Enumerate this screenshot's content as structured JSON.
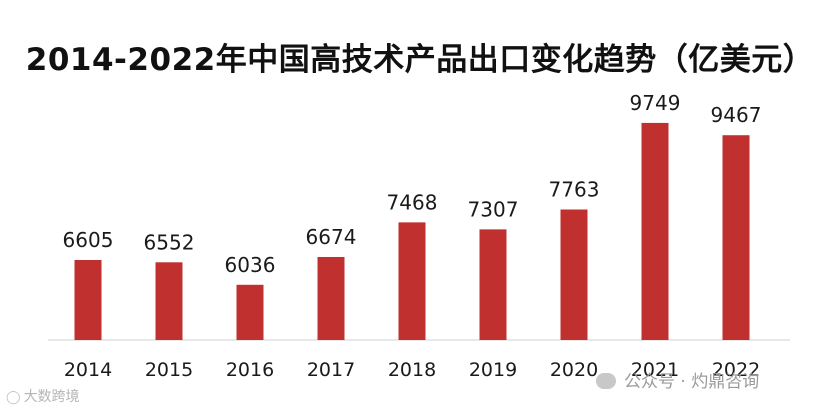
{
  "chart_data": {
    "type": "bar",
    "title": "2014-2022年中国高技术产品出口变化趋势（亿美元）",
    "categories": [
      "2014",
      "2015",
      "2016",
      "2017",
      "2018",
      "2019",
      "2020",
      "2021",
      "2022"
    ],
    "values": [
      6605,
      6552,
      6036,
      6674,
      7468,
      7307,
      7763,
      9749,
      9467
    ],
    "xlabel": "",
    "ylabel": "",
    "grid": false,
    "legend": "none",
    "bar_color": "#c0302e"
  },
  "watermarks": {
    "left_text": "大数跨境",
    "left_icon": "brand-logo-icon",
    "right_text": "公众号 · 灼鼎咨询",
    "right_icon": "wechat-icon"
  }
}
